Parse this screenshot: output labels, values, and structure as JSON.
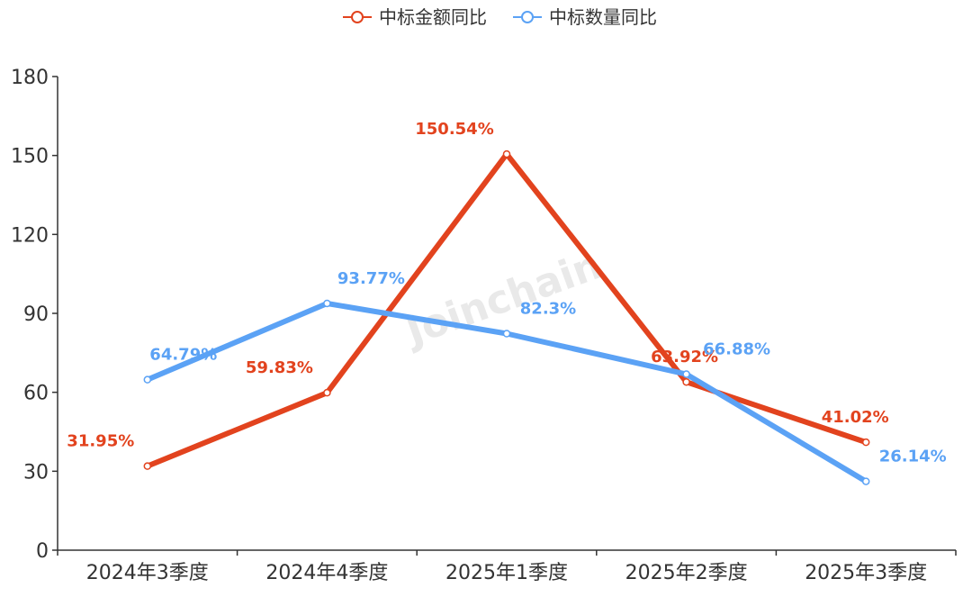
{
  "chart_data": {
    "type": "line",
    "title": "",
    "xlabel": "",
    "ylabel": "",
    "categories": [
      "2024年3季度",
      "2024年4季度",
      "2025年1季度",
      "2025年2季度",
      "2025年3季度"
    ],
    "ylim": [
      0,
      180
    ],
    "yticks": [
      0,
      30,
      60,
      90,
      120,
      150,
      180
    ],
    "grid": false,
    "legend_position": "top-center",
    "series": [
      {
        "name": "中标金额同比",
        "color": "#E2431E",
        "values": [
          31.95,
          59.83,
          150.54,
          63.92,
          41.02
        ],
        "labels": [
          "31.95%",
          "59.83%",
          "150.54%",
          "63.92%",
          "41.02%"
        ]
      },
      {
        "name": "中标数量同比",
        "color": "#5BA2F5",
        "values": [
          64.79,
          93.77,
          82.3,
          66.88,
          26.14
        ],
        "labels": [
          "64.79%",
          "93.77%",
          "82.3%",
          "66.88%",
          "26.14%"
        ]
      }
    ],
    "watermark": "Joinchain"
  }
}
